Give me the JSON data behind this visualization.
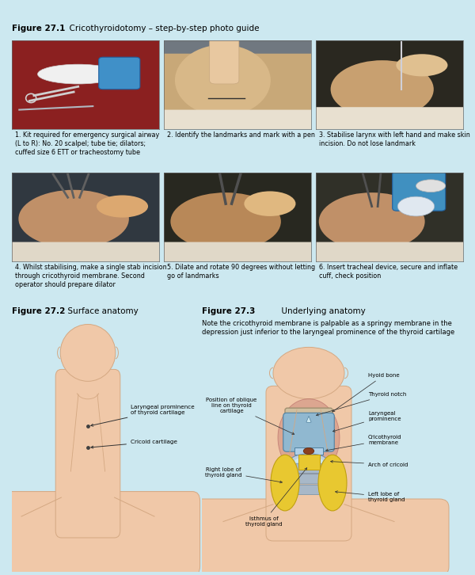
{
  "title_bold": "Figure 27.1",
  "title_rest": "  Cricothyroidotomy – step-by-step photo guide",
  "background_color": "#cce8f0",
  "captions": [
    "1. Kit required for emergency surgical airway\n(L to R): No. 20 scalpel; tube tie; dilators;\ncuffed size 6 ETT or tracheostomy tube",
    "2. Identify the landmarks and mark with a pen",
    "3. Stabilise larynx with left hand and make skin\nincision. Do not lose landmark",
    "4. Whilst stabilising, make a single stab incision\nthrough cricothyroid membrane. Second\noperator should prepare dilator",
    "5. Dilate and rotate 90 degrees without letting\ngo of landmarks",
    "6. Insert tracheal device, secure and inflate\ncuff, check position"
  ],
  "photo_bg_colors": [
    "#7a2020",
    "#5a5a6a",
    "#3a3830",
    "#3a3830",
    "#3a3830",
    "#3a3830"
  ],
  "fig2_title_bold": "Figure 27.2",
  "fig2_title_rest": "  Surface anatomy",
  "fig3_title_bold": "Figure 27.3",
  "fig3_title_rest": "  Underlying anatomy",
  "fig3_note": "Note the cricothyroid membrane is palpable as a springy membrane in the\ndepression just inferior to the laryngeal prominence of the thyroid cartilage",
  "skin_color": "#f0c8a8",
  "skin_edge": "#d4a882",
  "blue_cart": "#90b8d0",
  "blue_cart_edge": "#5080a0",
  "yellow_gland": "#e8c830",
  "yellow_gland_edge": "#c0a010",
  "pink_muscle": "#d09080",
  "trachea_color": "#a8b8c8"
}
